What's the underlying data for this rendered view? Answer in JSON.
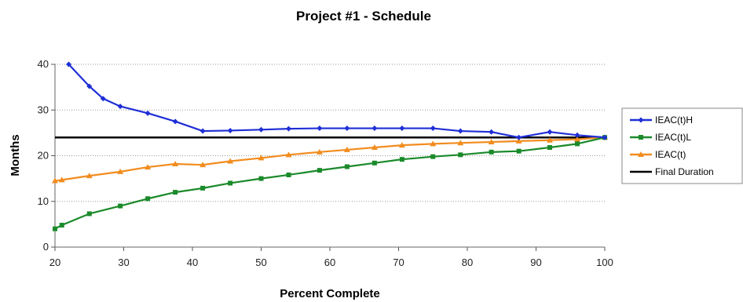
{
  "chart_data": {
    "type": "line",
    "title": "Project #1 - Schedule",
    "xlabel": "Percent Complete",
    "ylabel": "Months",
    "xlim": [
      20,
      100
    ],
    "ylim": [
      0,
      40
    ],
    "xticks": [
      20,
      30,
      40,
      50,
      60,
      70,
      80,
      90,
      100
    ],
    "yticks": [
      0,
      10,
      20,
      30,
      40
    ],
    "grid": "horizontal dotted",
    "legend": "right",
    "series": [
      {
        "name": "IEAC(t)H",
        "color": "#1f2fd6",
        "marker": "diamond",
        "x": [
          22,
          25,
          27,
          29.5,
          33.5,
          37.5,
          41.5,
          45.5,
          50,
          54,
          58.5,
          62.5,
          66.5,
          70.5,
          75,
          79,
          83.5,
          87.5,
          92,
          96,
          100
        ],
        "y": [
          40,
          35.2,
          32.5,
          30.8,
          29.3,
          27.5,
          25.4,
          25.5,
          25.7,
          25.9,
          26.0,
          26.0,
          26.0,
          26.0,
          26.0,
          25.4,
          25.2,
          24.0,
          25.2,
          24.5,
          24.0
        ]
      },
      {
        "name": "IEAC(t)L",
        "color": "#1a8a2a",
        "marker": "square",
        "x": [
          20,
          21,
          25,
          29.5,
          33.5,
          37.5,
          41.5,
          45.5,
          50,
          54,
          58.5,
          62.5,
          66.5,
          70.5,
          75,
          79,
          83.5,
          87.5,
          92,
          96,
          100
        ],
        "y": [
          4.0,
          4.8,
          7.3,
          9.0,
          10.6,
          12.0,
          12.9,
          14.0,
          15.0,
          15.8,
          16.8,
          17.6,
          18.4,
          19.2,
          19.8,
          20.2,
          20.8,
          21.0,
          21.8,
          22.6,
          24.0
        ]
      },
      {
        "name": "IEAC(t)",
        "color": "#f28c1e",
        "marker": "triangle",
        "x": [
          20,
          21,
          25,
          29.5,
          33.5,
          37.5,
          41.5,
          45.5,
          50,
          54,
          58.5,
          62.5,
          66.5,
          70.5,
          75,
          79,
          83.5,
          87.5,
          92,
          96,
          100
        ],
        "y": [
          14.5,
          14.7,
          15.6,
          16.5,
          17.5,
          18.2,
          18.0,
          18.8,
          19.5,
          20.2,
          20.8,
          21.3,
          21.8,
          22.3,
          22.6,
          22.8,
          23.0,
          23.2,
          23.4,
          23.6,
          24.0
        ]
      },
      {
        "name": "Final Duration",
        "color": "#000000",
        "marker": "none",
        "x": [
          20,
          100
        ],
        "y": [
          24,
          24
        ]
      }
    ]
  }
}
